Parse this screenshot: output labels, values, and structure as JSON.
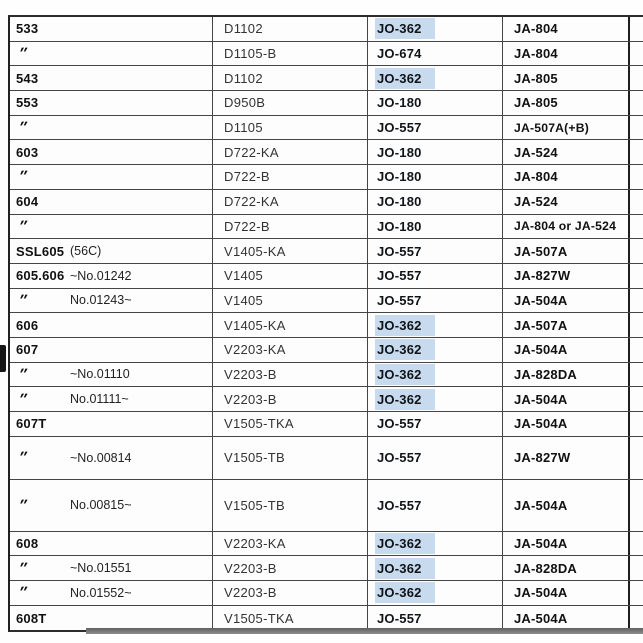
{
  "document": {
    "kind": "scanned-parts-cross-reference-table",
    "highlight_color": "#c7daee",
    "ditto_mark": "″"
  },
  "table": {
    "rows": [
      {
        "model": "533",
        "note": "",
        "engine": "D1102",
        "jo": "JO-362",
        "jo_highlight": true,
        "ja": "JA-804",
        "size": "n"
      },
      {
        "model": "″",
        "note": "",
        "engine": "D1105-B",
        "jo": "JO-674",
        "jo_highlight": false,
        "ja": "JA-804",
        "size": "n"
      },
      {
        "model": "543",
        "note": "",
        "engine": "D1102",
        "jo": "JO-362",
        "jo_highlight": true,
        "ja": "JA-805",
        "size": "n"
      },
      {
        "model": "553",
        "note": "",
        "engine": "D950B",
        "jo": "JO-180",
        "jo_highlight": false,
        "ja": "JA-805",
        "size": "n"
      },
      {
        "model": "″",
        "note": "",
        "engine": "D1105",
        "jo": "JO-557",
        "jo_highlight": false,
        "ja": "JA-507A(+B)",
        "size": "n"
      },
      {
        "model": "603",
        "note": "",
        "engine": "D722-KA",
        "jo": "JO-180",
        "jo_highlight": false,
        "ja": "JA-524",
        "size": "n"
      },
      {
        "model": "″",
        "note": "",
        "engine": "D722-B",
        "jo": "JO-180",
        "jo_highlight": false,
        "ja": "JA-804",
        "size": "n"
      },
      {
        "model": "604",
        "note": "",
        "engine": "D722-KA",
        "jo": "JO-180",
        "jo_highlight": false,
        "ja": "JA-524",
        "size": "n"
      },
      {
        "model": "″",
        "note": "",
        "engine": "D722-B",
        "jo": "JO-180",
        "jo_highlight": false,
        "ja": "JA-804 or JA-524",
        "size": "n"
      },
      {
        "model": "SSL605",
        "note": "(56C)",
        "engine": "V1405-KA",
        "jo": "JO-557",
        "jo_highlight": false,
        "ja": "JA-507A",
        "size": "n"
      },
      {
        "model": "605.606",
        "note": "~No.01242",
        "engine": "V1405",
        "jo": "JO-557",
        "jo_highlight": false,
        "ja": "JA-827W",
        "size": "n"
      },
      {
        "model": "″",
        "note": "No.01243~",
        "engine": "V1405",
        "jo": "JO-557",
        "jo_highlight": false,
        "ja": "JA-504A",
        "size": "n"
      },
      {
        "model": "606",
        "note": "",
        "engine": "V1405-KA",
        "jo": "JO-362",
        "jo_highlight": true,
        "ja": "JA-507A",
        "size": "n"
      },
      {
        "model": "607",
        "note": "",
        "engine": "V2203-KA",
        "jo": "JO-362",
        "jo_highlight": true,
        "ja": "JA-504A",
        "size": "n"
      },
      {
        "model": "″",
        "note": "~No.01110",
        "engine": "V2203-B",
        "jo": "JO-362",
        "jo_highlight": true,
        "ja": "JA-828DA",
        "size": "n"
      },
      {
        "model": "″",
        "note": "No.01111~",
        "engine": "V2203-B",
        "jo": "JO-362",
        "jo_highlight": true,
        "ja": "JA-504A",
        "size": "n"
      },
      {
        "model": "607T",
        "note": "",
        "engine": "V1505-TKA",
        "jo": "JO-557",
        "jo_highlight": false,
        "ja": "JA-504A",
        "size": "n"
      },
      {
        "model": "″",
        "note": "~No.00814",
        "engine": "V1505-TB",
        "jo": "JO-557",
        "jo_highlight": false,
        "ja": "JA-827W",
        "size": "t1"
      },
      {
        "model": "″",
        "note": "No.00815~",
        "engine": "V1505-TB",
        "jo": "JO-557",
        "jo_highlight": false,
        "ja": "JA-504A",
        "size": "t2"
      },
      {
        "model": "608",
        "note": "",
        "engine": "V2203-KA",
        "jo": "JO-362",
        "jo_highlight": true,
        "ja": "JA-504A",
        "size": "n"
      },
      {
        "model": "″",
        "note": "~No.01551",
        "engine": "V2203-B",
        "jo": "JO-362",
        "jo_highlight": true,
        "ja": "JA-828DA",
        "size": "n"
      },
      {
        "model": "″",
        "note": "No.01552~",
        "engine": "V2203-B",
        "jo": "JO-362",
        "jo_highlight": true,
        "ja": "JA-504A",
        "size": "n"
      },
      {
        "model": "608T",
        "note": "",
        "engine": "V1505-TKA",
        "jo": "JO-557",
        "jo_highlight": false,
        "ja": "JA-504A",
        "size": "n"
      }
    ]
  }
}
